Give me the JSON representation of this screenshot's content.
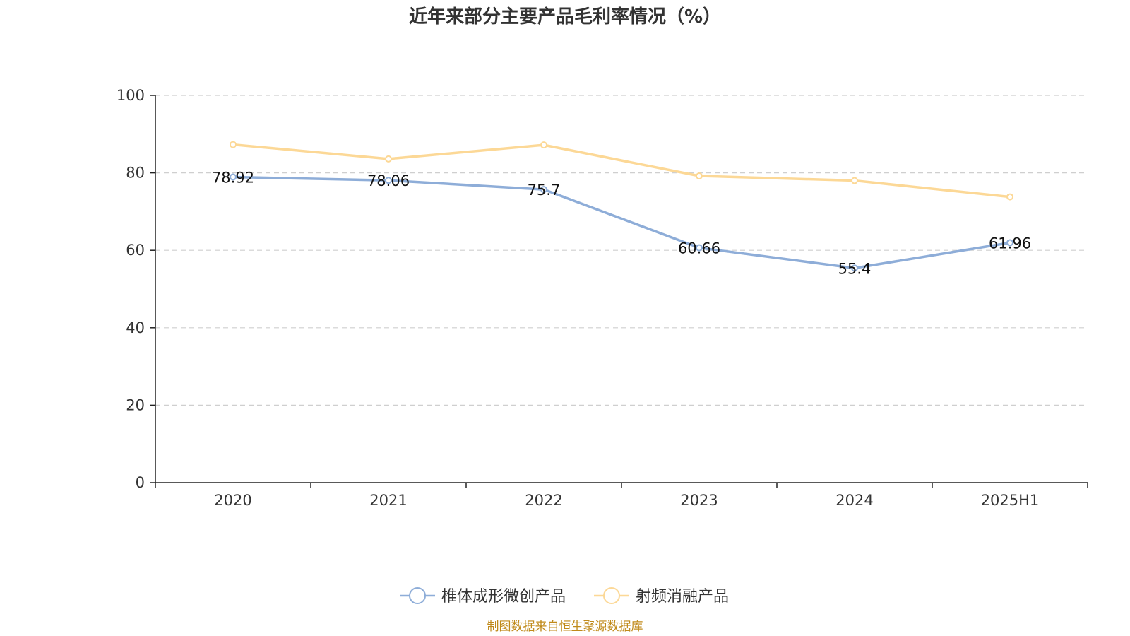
{
  "chart_data": {
    "type": "line",
    "title": "近年来部分主要产品毛利率情况（%）",
    "categories": [
      "2020",
      "2021",
      "2022",
      "2023",
      "2024",
      "2025H1"
    ],
    "ylim": [
      0,
      100
    ],
    "yticks": [
      0,
      20,
      40,
      60,
      80,
      100
    ],
    "grid": true,
    "legend_position": "bottom",
    "series": [
      {
        "name": "椎体成形微创产品",
        "color": "#8eadd8",
        "labeled": true,
        "values": [
          78.92,
          78.06,
          75.7,
          60.66,
          55.4,
          61.96
        ]
      },
      {
        "name": "射频消融产品",
        "color": "#fcd896",
        "labeled": false,
        "values": [
          87.3,
          83.6,
          87.2,
          79.2,
          78.0,
          73.8
        ]
      }
    ]
  },
  "source": "制图数据来自恒生聚源数据库"
}
